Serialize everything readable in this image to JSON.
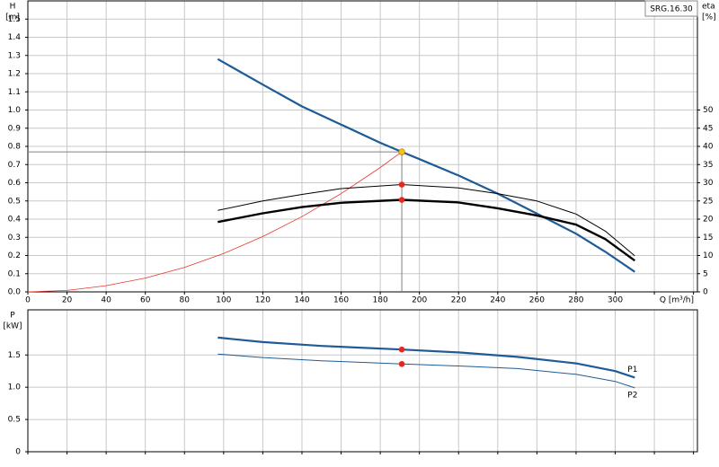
{
  "chart_data": [
    {
      "type": "line",
      "title": "SRG.16.30",
      "ylabel": [
        "H",
        "[m]"
      ],
      "y2label": [
        "eta",
        "[%]"
      ],
      "xlabel": "Q [m³/h]",
      "xlim": [
        0,
        342
      ],
      "xticks": [
        0,
        20,
        40,
        60,
        80,
        100,
        120,
        140,
        160,
        180,
        200,
        220,
        240,
        260,
        280,
        300,
        320,
        340
      ],
      "xtick_labels_upto": 300,
      "ylim": [
        0,
        1.6
      ],
      "yticks": [
        {
          "value": 0,
          "label": "0.0"
        },
        0.1,
        0.2,
        0.3,
        0.4,
        0.5,
        0.6,
        0.7,
        0.8,
        0.9,
        {
          "value": 1,
          "label": "1.0"
        },
        1.1,
        1.2,
        1.3,
        1.4,
        1.5
      ],
      "y2lim": [
        0,
        80
      ],
      "y2ticks": [
        0,
        5,
        10,
        15,
        20,
        25,
        30,
        35,
        40,
        45,
        50
      ],
      "grid": true,
      "series": [
        {
          "color": "#1f5b96",
          "width": 2.2,
          "x": [
            97,
            120,
            140,
            160,
            180,
            191,
            200,
            220,
            240,
            260,
            280,
            295,
            310
          ],
          "values": [
            1.28,
            1.14,
            1.02,
            0.92,
            0.82,
            0.77,
            0.73,
            0.64,
            0.54,
            0.43,
            0.32,
            0.22,
            0.11
          ]
        },
        {
          "color": "#e8382c",
          "width": 0.8,
          "x": [
            0,
            20,
            40,
            60,
            80,
            100,
            120,
            140,
            160,
            180,
            191
          ],
          "values": [
            0,
            0.008,
            0.034,
            0.076,
            0.135,
            0.211,
            0.304,
            0.414,
            0.54,
            0.684,
            0.77
          ]
        },
        {
          "color": "#000000",
          "width": 1,
          "axis": "y2",
          "x": [
            97,
            120,
            140,
            160,
            191,
            220,
            240,
            260,
            280,
            295,
            310
          ],
          "values": [
            22.4,
            25,
            26.8,
            28.4,
            29.5,
            28.6,
            27,
            25,
            21.4,
            16.7,
            9.9
          ]
        },
        {
          "color": "#000000",
          "width": 2.4,
          "axis": "y2",
          "x": [
            97,
            120,
            140,
            160,
            191,
            220,
            240,
            260,
            280,
            295,
            310
          ],
          "values": [
            19.2,
            21.6,
            23.3,
            24.5,
            25.3,
            24.6,
            23,
            21,
            18.5,
            14.5,
            8.6
          ]
        }
      ],
      "points": [
        {
          "x": 191,
          "y": 29.5,
          "axis": "y2",
          "color": "#e8261c"
        },
        {
          "x": 191,
          "y": 25.3,
          "axis": "y2",
          "color": "#e8261c"
        },
        {
          "x": 191,
          "y": 0.77,
          "color": "#f5c518",
          "crosshair": true
        }
      ]
    },
    {
      "type": "line",
      "ylabel": [
        "P",
        "[kW]"
      ],
      "xlim": [
        0,
        342
      ],
      "xticks": [
        0,
        20,
        40,
        60,
        80,
        100,
        120,
        140,
        160,
        180,
        200,
        220,
        240,
        260,
        280,
        300,
        320,
        340
      ],
      "xtick_labels_upto": -1,
      "ylim": [
        0,
        2.2
      ],
      "yticks": [
        0,
        0.5,
        {
          "value": 1,
          "label": "1.0"
        },
        1.5
      ],
      "grid": true,
      "series": [
        {
          "name": "P1",
          "color": "#1f5b96",
          "width": 2.2,
          "x": [
            97,
            120,
            150,
            191,
            220,
            250,
            280,
            300,
            310
          ],
          "values": [
            1.77,
            1.7,
            1.64,
            1.585,
            1.54,
            1.47,
            1.37,
            1.25,
            1.15
          ]
        },
        {
          "name": "P2",
          "color": "#1f5b96",
          "width": 1,
          "x": [
            97,
            120,
            150,
            191,
            220,
            250,
            280,
            300,
            310
          ],
          "values": [
            1.515,
            1.46,
            1.41,
            1.36,
            1.33,
            1.29,
            1.2,
            1.09,
            0.99
          ]
        }
      ],
      "points": [
        {
          "x": 191,
          "y": 1.585,
          "color": "#e8261c"
        },
        {
          "x": 191,
          "y": 1.36,
          "color": "#e8261c"
        }
      ]
    }
  ]
}
